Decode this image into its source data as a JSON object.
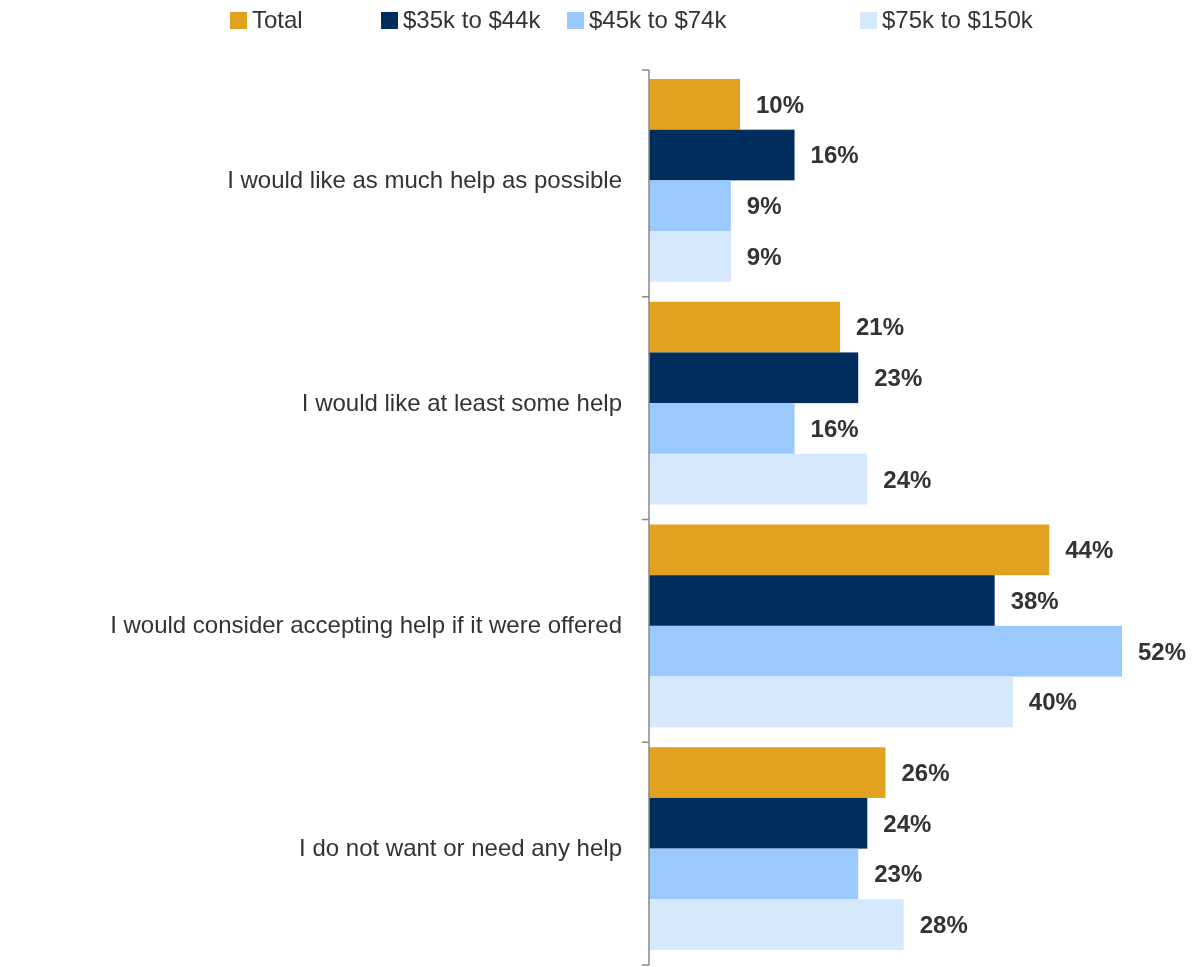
{
  "chart_data": {
    "type": "bar",
    "orientation": "horizontal",
    "categories": [
      "I would like as much help as possible",
      "I would like at least some help",
      "I would consider accepting help if it were offered",
      "I do not want or need any help"
    ],
    "series": [
      {
        "name": "Total",
        "color": "#e2a11e",
        "values": [
          10,
          21,
          44,
          26
        ],
        "value_labels": [
          "10%",
          "21%",
          "44%",
          "26%"
        ]
      },
      {
        "name": "$35k to $44k",
        "color": "#002d5b",
        "values": [
          16,
          23,
          38,
          24
        ],
        "value_labels": [
          "16%",
          "23%",
          "38%",
          "24%"
        ]
      },
      {
        "name": "$45k to $74k",
        "color": "#99c9fd",
        "values": [
          9,
          16,
          52,
          23
        ],
        "value_labels": [
          "9%",
          "16%",
          "52%",
          "23%"
        ]
      },
      {
        "name": "$75k to $150k",
        "color": "#d6e8fe",
        "values": [
          9,
          24,
          40,
          28
        ],
        "value_labels": [
          "9%",
          "24%",
          "40%",
          "28%"
        ]
      }
    ],
    "legend": "top"
  }
}
